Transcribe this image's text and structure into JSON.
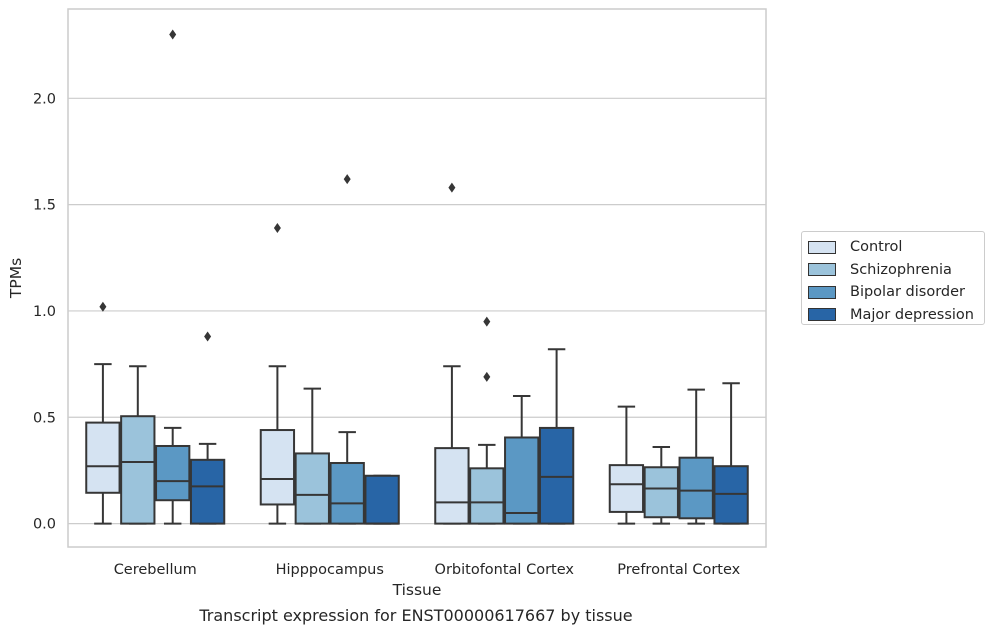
{
  "chart_data": {
    "type": "box",
    "categories": [
      "Cerebellum",
      "Hipppocampus",
      "Orbitofontal Cortex",
      "Prefrontal Cortex"
    ],
    "xlabel": "Tissue",
    "ylabel": "TPMs",
    "ylim": [
      -0.11,
      2.42
    ],
    "yticks": [
      0.0,
      0.5,
      1.0,
      1.5,
      2.0
    ],
    "ytick_labels": [
      "0.0",
      "0.5",
      "1.0",
      "1.5",
      "2.0"
    ],
    "grid": "horizontal",
    "legend_position": "right",
    "series": [
      {
        "name": "Control",
        "color": "#d5e3f2",
        "boxes": [
          {
            "whisker_low": 0.0,
            "q1": 0.145,
            "median": 0.27,
            "q3": 0.475,
            "whisker_high": 0.75,
            "outliers": [
              1.02
            ]
          },
          {
            "whisker_low": 0.0,
            "q1": 0.09,
            "median": 0.21,
            "q3": 0.44,
            "whisker_high": 0.74,
            "outliers": [
              1.39
            ]
          },
          {
            "whisker_low": 0.0,
            "q1": 0.0,
            "median": 0.1,
            "q3": 0.355,
            "whisker_high": 0.74,
            "outliers": [
              1.58
            ]
          },
          {
            "whisker_low": 0.0,
            "q1": 0.055,
            "median": 0.185,
            "q3": 0.275,
            "whisker_high": 0.55,
            "outliers": []
          }
        ]
      },
      {
        "name": "Schizophrenia",
        "color": "#9bc3db",
        "boxes": [
          {
            "whisker_low": 0.0,
            "q1": 0.0,
            "median": 0.29,
            "q3": 0.505,
            "whisker_high": 0.74,
            "outliers": []
          },
          {
            "whisker_low": 0.0,
            "q1": 0.0,
            "median": 0.135,
            "q3": 0.33,
            "whisker_high": 0.635,
            "outliers": []
          },
          {
            "whisker_low": 0.0,
            "q1": 0.0,
            "median": 0.1,
            "q3": 0.26,
            "whisker_high": 0.37,
            "outliers": [
              0.69,
              0.95
            ]
          },
          {
            "whisker_low": 0.0,
            "q1": 0.03,
            "median": 0.165,
            "q3": 0.265,
            "whisker_high": 0.36,
            "outliers": []
          }
        ]
      },
      {
        "name": "Bipolar disorder",
        "color": "#5b98c4",
        "boxes": [
          {
            "whisker_low": 0.0,
            "q1": 0.11,
            "median": 0.2,
            "q3": 0.365,
            "whisker_high": 0.45,
            "outliers": [
              2.3
            ]
          },
          {
            "whisker_low": 0.0,
            "q1": 0.0,
            "median": 0.095,
            "q3": 0.285,
            "whisker_high": 0.43,
            "outliers": [
              1.62
            ]
          },
          {
            "whisker_low": 0.0,
            "q1": 0.0,
            "median": 0.05,
            "q3": 0.405,
            "whisker_high": 0.6,
            "outliers": []
          },
          {
            "whisker_low": 0.0,
            "q1": 0.025,
            "median": 0.155,
            "q3": 0.31,
            "whisker_high": 0.63,
            "outliers": []
          }
        ]
      },
      {
        "name": "Major depression",
        "color": "#2865a6",
        "boxes": [
          {
            "whisker_low": 0.0,
            "q1": 0.0,
            "median": 0.175,
            "q3": 0.3,
            "whisker_high": 0.375,
            "outliers": [
              0.88
            ]
          },
          {
            "whisker_low": 0.0,
            "q1": 0.0,
            "median": 0.0,
            "q3": 0.225,
            "whisker_high": 0.225,
            "outliers": []
          },
          {
            "whisker_low": 0.0,
            "q1": 0.0,
            "median": 0.22,
            "q3": 0.45,
            "whisker_high": 0.82,
            "outliers": []
          },
          {
            "whisker_low": 0.0,
            "q1": 0.0,
            "median": 0.14,
            "q3": 0.27,
            "whisker_high": 0.66,
            "outliers": []
          }
        ]
      }
    ]
  },
  "caption": "Transcript expression for ENST00000617667 by tissue",
  "colors": {
    "axes_edge": "#cccccc",
    "grid": "#cccccc",
    "box_edge": "#363636",
    "text": "#262626"
  }
}
